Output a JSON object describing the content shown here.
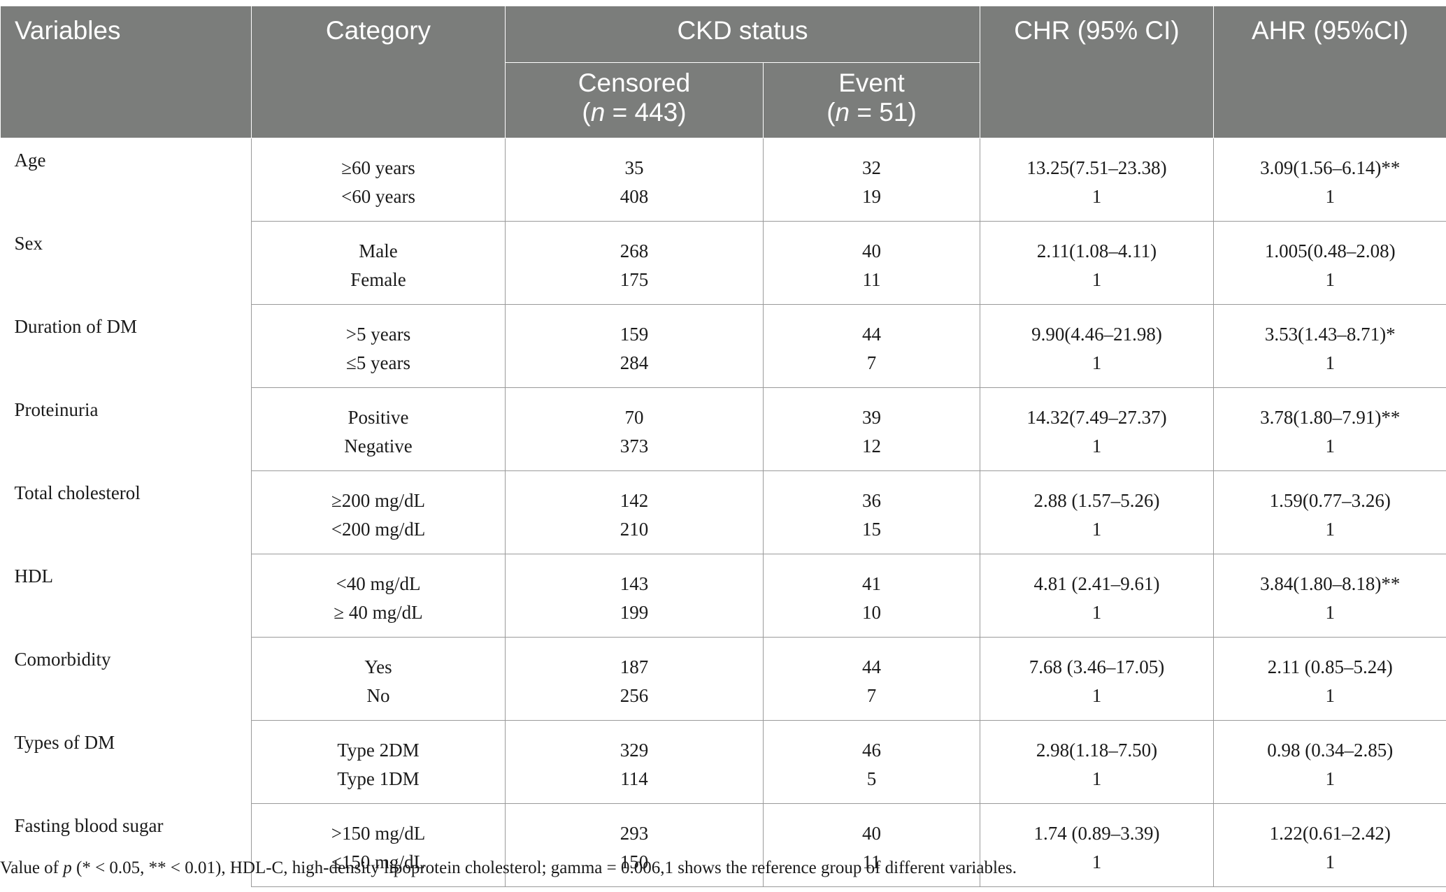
{
  "table": {
    "headers": {
      "variables": "Variables",
      "category": "Category",
      "ckd_status": "CKD status",
      "censored_label": "Censored",
      "censored_n_prefix": "(",
      "censored_n_italic": "n",
      "censored_n_suffix": " = 443)",
      "event_label": "Event",
      "event_n_prefix": "(",
      "event_n_italic": "n",
      "event_n_suffix": " = 51)",
      "chr": "CHR (95% CI)",
      "ahr": "AHR (95%CI)"
    },
    "rows": [
      {
        "variable": "Age",
        "levels": [
          {
            "category": "≥60 years",
            "censored": "35",
            "event": "32",
            "chr": "13.25(7.51–23.38)",
            "ahr": "3.09(1.56–6.14)**"
          },
          {
            "category": "<60 years",
            "censored": "408",
            "event": "19",
            "chr": "1",
            "ahr": "1"
          }
        ]
      },
      {
        "variable": "Sex",
        "levels": [
          {
            "category": "Male",
            "censored": "268",
            "event": "40",
            "chr": "2.11(1.08–4.11)",
            "ahr": "1.005(0.48–2.08)"
          },
          {
            "category": "Female",
            "censored": "175",
            "event": "11",
            "chr": "1",
            "ahr": "1"
          }
        ]
      },
      {
        "variable": "Duration of DM",
        "levels": [
          {
            "category": ">5 years",
            "censored": "159",
            "event": "44",
            "chr": "9.90(4.46–21.98)",
            "ahr": "3.53(1.43–8.71)*"
          },
          {
            "category": "≤5 years",
            "censored": "284",
            "event": "7",
            "chr": "1",
            "ahr": "1"
          }
        ]
      },
      {
        "variable": "Proteinuria",
        "levels": [
          {
            "category": "Positive",
            "censored": "70",
            "event": "39",
            "chr": "14.32(7.49–27.37)",
            "ahr": "3.78(1.80–7.91)**"
          },
          {
            "category": "Negative",
            "censored": "373",
            "event": "12",
            "chr": "1",
            "ahr": "1"
          }
        ]
      },
      {
        "variable": "Total cholesterol",
        "levels": [
          {
            "category": "≥200 mg/dL",
            "censored": "142",
            "event": "36",
            "chr": "2.88 (1.57–5.26)",
            "ahr": "1.59(0.77–3.26)"
          },
          {
            "category": "<200 mg/dL",
            "censored": "210",
            "event": "15",
            "chr": "1",
            "ahr": "1"
          }
        ]
      },
      {
        "variable": "HDL",
        "levels": [
          {
            "category": "<40 mg/dL",
            "censored": "143",
            "event": "41",
            "chr": "4.81 (2.41–9.61)",
            "ahr": "3.84(1.80–8.18)**"
          },
          {
            "category": "≥ 40 mg/dL",
            "censored": "199",
            "event": "10",
            "chr": "1",
            "ahr": "1"
          }
        ]
      },
      {
        "variable": "Comorbidity",
        "levels": [
          {
            "category": "Yes",
            "censored": "187",
            "event": "44",
            "chr": "7.68 (3.46–17.05)",
            "ahr": "2.11 (0.85–5.24)"
          },
          {
            "category": "No",
            "censored": "256",
            "event": "7",
            "chr": "1",
            "ahr": "1"
          }
        ]
      },
      {
        "variable": "Types of DM",
        "levels": [
          {
            "category": "Type 2DM",
            "censored": "329",
            "event": "46",
            "chr": "2.98(1.18–7.50)",
            "ahr": "0.98 (0.34–2.85)"
          },
          {
            "category": "Type 1DM",
            "censored": "114",
            "event": "5",
            "chr": "1",
            "ahr": "1"
          }
        ]
      },
      {
        "variable": "Fasting blood sugar",
        "levels": [
          {
            "category": ">150 mg/dL",
            "censored": "293",
            "event": "40",
            "chr": "1.74 (0.89–3.39)",
            "ahr": "1.22(0.61–2.42)"
          },
          {
            "category": "≤150 mg/dL",
            "censored": "150",
            "event": "11",
            "chr": "1",
            "ahr": "1"
          }
        ]
      }
    ]
  },
  "footnote": {
    "prefix": "Value of ",
    "p": "p",
    "rest": " (* < 0.05, ** < 0.01), HDL-C, high-density lipoprotein cholesterol; gamma = 0.006,1 shows the reference group of different variables."
  },
  "colors": {
    "header_bg": "#7b7d7b",
    "header_text": "#ffffff",
    "rule": "#9a9a9a"
  }
}
